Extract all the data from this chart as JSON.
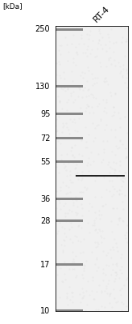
{
  "title": "RT-4",
  "kda_label": "[kDa]",
  "marker_positions": [
    250,
    130,
    95,
    72,
    55,
    36,
    28,
    17,
    10
  ],
  "marker_labels": [
    "250",
    "130",
    "95",
    "72",
    "55",
    "36",
    "28",
    "17",
    "10"
  ],
  "band_kda": 47,
  "gel_bg_color": "#e8e8e8",
  "gel_bg_color2": "#f0f0f0",
  "band_color": "#222222",
  "marker_color": "#888888",
  "border_color": "#000000",
  "fig_bg": "#ffffff",
  "log_min": 10,
  "log_max": 260,
  "title_fontsize": 8,
  "label_fontsize": 7,
  "kda_fontsize": 6.5
}
